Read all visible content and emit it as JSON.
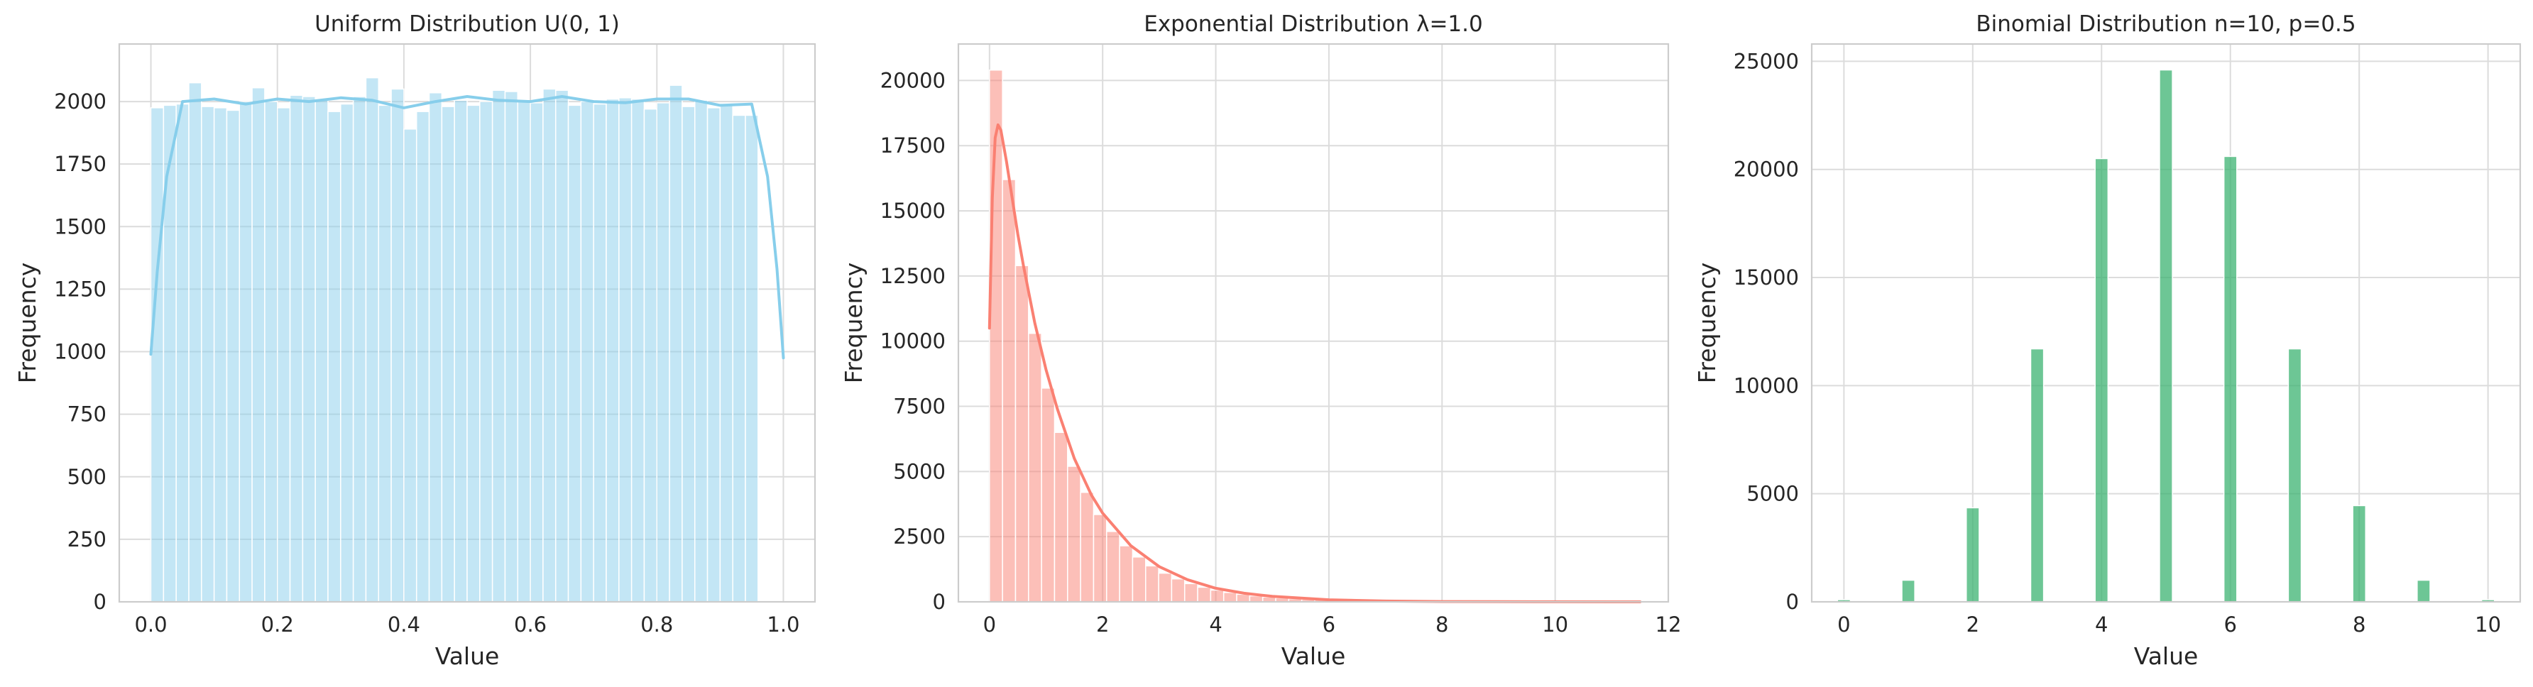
{
  "chart_data": [
    {
      "type": "bar",
      "kind": "histogram",
      "title": "Uniform Distribution U(0, 1)",
      "xlabel": "Value",
      "ylabel": "Frequency",
      "xlim": [
        -0.05,
        1.05
      ],
      "ylim": [
        0,
        2230
      ],
      "xticks": [
        0.0,
        0.2,
        0.4,
        0.6,
        0.8,
        1.0
      ],
      "xtick_labels": [
        "0.0",
        "0.2",
        "0.4",
        "0.6",
        "0.8",
        "1.0"
      ],
      "yticks": [
        0,
        250,
        500,
        750,
        1000,
        1250,
        1500,
        1750,
        2000
      ],
      "ytick_labels": [
        "0",
        "250",
        "500",
        "750",
        "1000",
        "1250",
        "1500",
        "1750",
        "2000"
      ],
      "bin_start": 0.0,
      "bin_width": 0.02,
      "values": [
        1975,
        1985,
        1990,
        2075,
        1980,
        1975,
        1965,
        2000,
        2055,
        2000,
        1975,
        2025,
        2020,
        2010,
        1960,
        1990,
        2020,
        2095,
        1985,
        2050,
        1890,
        1960,
        2035,
        1980,
        2005,
        1985,
        2000,
        2045,
        2040,
        2000,
        1995,
        2050,
        2045,
        1985,
        2000,
        1990,
        2010,
        2015,
        2010,
        1970,
        1995,
        2065,
        1980,
        2005,
        1975,
        1990,
        1945,
        1945
      ],
      "kde_x": [
        0.0,
        0.01,
        0.025,
        0.05,
        0.1,
        0.15,
        0.2,
        0.25,
        0.3,
        0.35,
        0.4,
        0.45,
        0.5,
        0.55,
        0.6,
        0.65,
        0.7,
        0.75,
        0.8,
        0.85,
        0.9,
        0.95,
        0.975,
        0.99,
        1.0
      ],
      "kde_y": [
        990,
        1320,
        1700,
        2000,
        2010,
        1990,
        2010,
        2000,
        2015,
        2005,
        1975,
        2000,
        2020,
        2005,
        2000,
        2020,
        2000,
        1995,
        2010,
        2010,
        1985,
        1990,
        1700,
        1330,
        975
      ],
      "grid": true,
      "colors": {
        "bar": "#87ceeb",
        "bar_edge": "#ffffff",
        "kde": "#87ceeb"
      }
    },
    {
      "type": "bar",
      "kind": "histogram",
      "title": "Exponential Distribution λ=1.0",
      "xlabel": "Value",
      "ylabel": "Frequency",
      "xlim": [
        -0.55,
        12.0
      ],
      "ylim": [
        0,
        21400
      ],
      "xticks": [
        0,
        2,
        4,
        6,
        8,
        10,
        12
      ],
      "xtick_labels": [
        "0",
        "2",
        "4",
        "6",
        "8",
        "10",
        "12"
      ],
      "yticks": [
        0,
        2500,
        5000,
        7500,
        10000,
        12500,
        15000,
        17500,
        20000
      ],
      "ytick_labels": [
        "0",
        "2500",
        "5000",
        "7500",
        "10000",
        "12500",
        "15000",
        "17500",
        "20000"
      ],
      "bin_start": 0.0,
      "bin_width": 0.23,
      "values": [
        20400,
        16200,
        12900,
        10300,
        8200,
        6500,
        5200,
        4200,
        3350,
        2700,
        2150,
        1720,
        1380,
        1100,
        880,
        700,
        560,
        450,
        360,
        290,
        230,
        185,
        150,
        120,
        95,
        76,
        61,
        49,
        39,
        31,
        25,
        20,
        16,
        13,
        10,
        8,
        6,
        5,
        4,
        3,
        3,
        2,
        2,
        2,
        1,
        1,
        1,
        1,
        1,
        1
      ],
      "kde_x": [
        0.0,
        0.05,
        0.1,
        0.15,
        0.2,
        0.3,
        0.4,
        0.5,
        0.6,
        0.8,
        1.0,
        1.2,
        1.5,
        1.8,
        2.0,
        2.5,
        3.0,
        3.5,
        4.0,
        4.5,
        5.0,
        6.0,
        7.0,
        8.0,
        9.0,
        10.0,
        11.0,
        11.5
      ],
      "kde_y": [
        10500,
        15500,
        17800,
        18300,
        18100,
        16900,
        15500,
        14100,
        12900,
        10700,
        8900,
        7400,
        5500,
        4100,
        3400,
        2150,
        1350,
        850,
        520,
        330,
        210,
        80,
        30,
        12,
        5,
        2,
        1,
        0
      ],
      "grid": true,
      "colors": {
        "bar": "#fa8072",
        "bar_edge": "#ffffff",
        "kde": "#fa8072"
      }
    },
    {
      "type": "bar",
      "kind": "histogram",
      "title": "Binomial Distribution n=10, p=0.5",
      "xlabel": "Value",
      "ylabel": "Frequency",
      "xlim": [
        -0.5,
        10.5
      ],
      "ylim": [
        0,
        25800
      ],
      "xticks": [
        0,
        2,
        4,
        6,
        8,
        10
      ],
      "xtick_labels": [
        "0",
        "2",
        "4",
        "6",
        "8",
        "10"
      ],
      "yticks": [
        0,
        5000,
        10000,
        15000,
        20000,
        25000
      ],
      "ytick_labels": [
        "0",
        "5000",
        "10000",
        "15000",
        "20000",
        "25000"
      ],
      "bar_width": 0.2,
      "categories": [
        0,
        1,
        2,
        3,
        4,
        5,
        6,
        7,
        8,
        9,
        10
      ],
      "values": [
        100,
        1000,
        4350,
        11700,
        20500,
        24600,
        20600,
        11700,
        4450,
        1000,
        100
      ],
      "grid": true,
      "colors": {
        "bar": "#3cb371",
        "bar_edge": "#ffffff"
      }
    }
  ]
}
